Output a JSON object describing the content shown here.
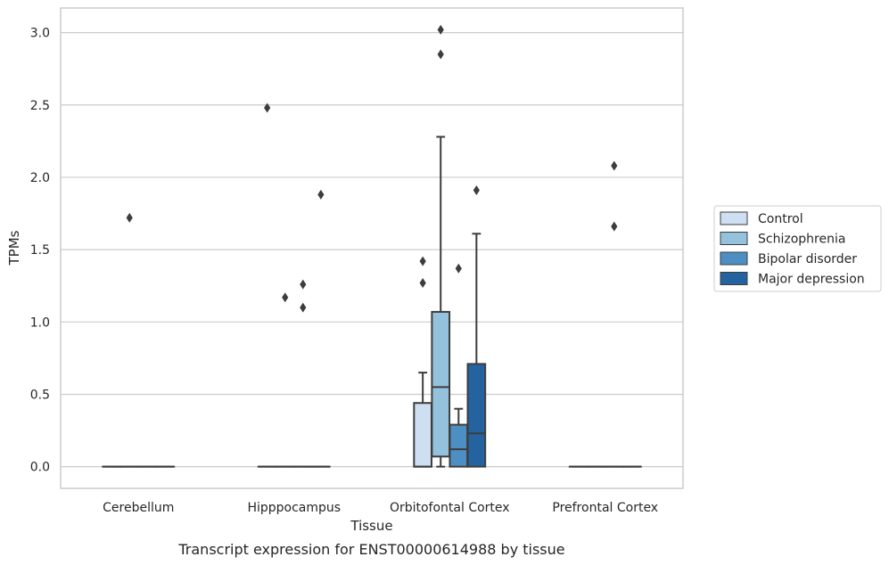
{
  "chart_data": {
    "type": "box",
    "title": "",
    "caption": "Transcript expression for ENST00000614988 by tissue",
    "xlabel": "Tissue",
    "ylabel": "TPMs",
    "ylim": [
      -0.15,
      3.17
    ],
    "yticks": [
      "0.0",
      "0.5",
      "1.0",
      "1.5",
      "2.0",
      "2.5",
      "3.0"
    ],
    "grid": true,
    "legend_position": "right",
    "categories": [
      "Cerebellum",
      "Hipppocampus",
      "Orbitofontal Cortex",
      "Prefrontal Cortex"
    ],
    "series": [
      {
        "name": "Control",
        "color": "#cddff0",
        "boxes": [
          {
            "category": "Cerebellum",
            "whisker_low": 0,
            "q1": 0,
            "median": 0,
            "q3": 0,
            "whisker_high": 0,
            "outliers": []
          },
          {
            "category": "Hipppocampus",
            "whisker_low": 0,
            "q1": 0,
            "median": 0,
            "q3": 0,
            "whisker_high": 0,
            "outliers": [
              2.48
            ]
          },
          {
            "category": "Orbitofontal Cortex",
            "whisker_low": 0,
            "q1": 0,
            "median": 0,
            "q3": 0.44,
            "whisker_high": 0.65,
            "outliers": [
              1.27,
              1.42
            ]
          },
          {
            "category": "Prefrontal Cortex",
            "whisker_low": 0,
            "q1": 0,
            "median": 0,
            "q3": 0,
            "whisker_high": 0,
            "outliers": []
          }
        ]
      },
      {
        "name": "Schizophrenia",
        "color": "#94c2dd",
        "boxes": [
          {
            "category": "Cerebellum",
            "whisker_low": 0,
            "q1": 0,
            "median": 0,
            "q3": 0,
            "whisker_high": 0,
            "outliers": [
              1.72
            ]
          },
          {
            "category": "Hipppocampus",
            "whisker_low": 0,
            "q1": 0,
            "median": 0,
            "q3": 0,
            "whisker_high": 0,
            "outliers": [
              1.17
            ]
          },
          {
            "category": "Orbitofontal Cortex",
            "whisker_low": 0,
            "q1": 0.07,
            "median": 0.55,
            "q3": 1.07,
            "whisker_high": 2.28,
            "outliers": [
              2.85,
              3.02
            ]
          },
          {
            "category": "Prefrontal Cortex",
            "whisker_low": 0,
            "q1": 0,
            "median": 0,
            "q3": 0,
            "whisker_high": 0,
            "outliers": []
          }
        ]
      },
      {
        "name": "Bipolar disorder",
        "color": "#4d8fc2",
        "boxes": [
          {
            "category": "Cerebellum",
            "whisker_low": 0,
            "q1": 0,
            "median": 0,
            "q3": 0,
            "whisker_high": 0,
            "outliers": []
          },
          {
            "category": "Hipppocampus",
            "whisker_low": 0,
            "q1": 0,
            "median": 0,
            "q3": 0,
            "whisker_high": 0,
            "outliers": [
              1.26,
              1.1
            ]
          },
          {
            "category": "Orbitofontal Cortex",
            "whisker_low": 0,
            "q1": 0,
            "median": 0.12,
            "q3": 0.29,
            "whisker_high": 0.4,
            "outliers": [
              1.37
            ]
          },
          {
            "category": "Prefrontal Cortex",
            "whisker_low": 0,
            "q1": 0,
            "median": 0,
            "q3": 0,
            "whisker_high": 0,
            "outliers": [
              1.66,
              2.08
            ]
          }
        ]
      },
      {
        "name": "Major depression",
        "color": "#2463a0",
        "boxes": [
          {
            "category": "Cerebellum",
            "whisker_low": 0,
            "q1": 0,
            "median": 0,
            "q3": 0,
            "whisker_high": 0,
            "outliers": []
          },
          {
            "category": "Hipppocampus",
            "whisker_low": 0,
            "q1": 0,
            "median": 0,
            "q3": 0,
            "whisker_high": 0,
            "outliers": [
              1.88
            ]
          },
          {
            "category": "Orbitofontal Cortex",
            "whisker_low": 0,
            "q1": 0,
            "median": 0.23,
            "q3": 0.71,
            "whisker_high": 1.61,
            "outliers": [
              1.91
            ]
          },
          {
            "category": "Prefrontal Cortex",
            "whisker_low": 0,
            "q1": 0,
            "median": 0,
            "q3": 0,
            "whisker_high": 0,
            "outliers": []
          }
        ]
      }
    ]
  }
}
